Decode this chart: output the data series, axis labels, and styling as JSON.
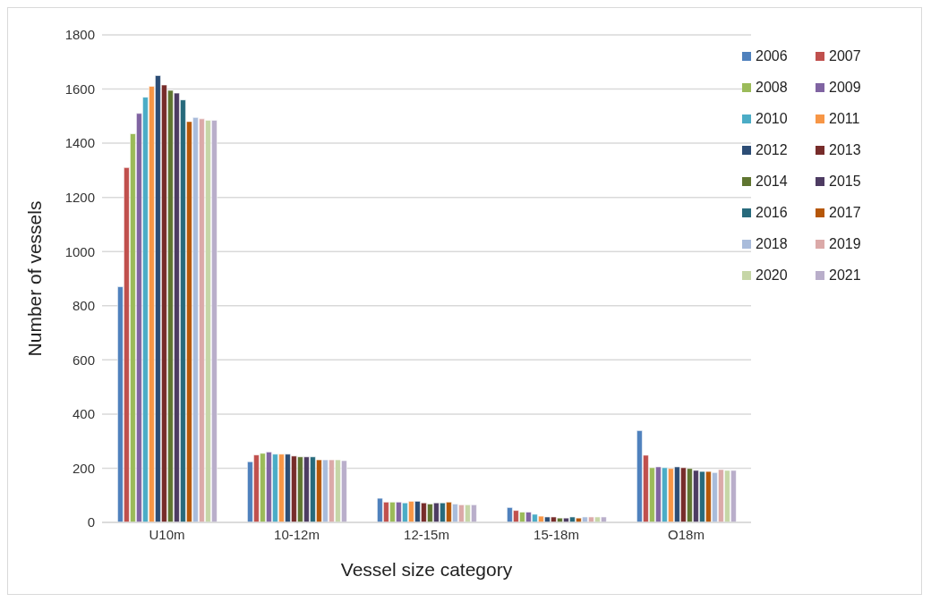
{
  "chart_data": {
    "type": "bar",
    "xlabel": "Vessel size category",
    "ylabel": "Number of vessels",
    "categories": [
      "U10m",
      "10-12m",
      "12-15m",
      "15-18m",
      "O18m"
    ],
    "series": [
      {
        "name": "2006",
        "color": "#4f81bd",
        "values": [
          870,
          224,
          89,
          55,
          339
        ]
      },
      {
        "name": "2007",
        "color": "#c0504d",
        "values": [
          1310,
          249,
          75,
          44,
          248
        ]
      },
      {
        "name": "2008",
        "color": "#9bbb59",
        "values": [
          1435,
          255,
          75,
          38,
          202
        ]
      },
      {
        "name": "2009",
        "color": "#8064a2",
        "values": [
          1510,
          260,
          75,
          38,
          205
        ]
      },
      {
        "name": "2010",
        "color": "#4bacc6",
        "values": [
          1570,
          252,
          72,
          30,
          202
        ]
      },
      {
        "name": "2011",
        "color": "#f79646",
        "values": [
          1610,
          252,
          78,
          23,
          199
        ]
      },
      {
        "name": "2012",
        "color": "#2c4d75",
        "values": [
          1650,
          252,
          78,
          20,
          205
        ]
      },
      {
        "name": "2013",
        "color": "#772c2a",
        "values": [
          1615,
          245,
          72,
          20,
          202
        ]
      },
      {
        "name": "2014",
        "color": "#5f7530",
        "values": [
          1595,
          242,
          68,
          16,
          199
        ]
      },
      {
        "name": "2015",
        "color": "#4d3b62",
        "values": [
          1585,
          242,
          72,
          16,
          192
        ]
      },
      {
        "name": "2016",
        "color": "#276a7c",
        "values": [
          1560,
          242,
          72,
          20,
          188
        ]
      },
      {
        "name": "2017",
        "color": "#b65708",
        "values": [
          1480,
          231,
          75,
          16,
          188
        ]
      },
      {
        "name": "2018",
        "color": "#a9bcdb",
        "values": [
          1495,
          231,
          68,
          20,
          184
        ]
      },
      {
        "name": "2019",
        "color": "#dba9a8",
        "values": [
          1490,
          231,
          65,
          20,
          195
        ]
      },
      {
        "name": "2020",
        "color": "#c6d6a7",
        "values": [
          1485,
          231,
          65,
          20,
          192
        ]
      },
      {
        "name": "2021",
        "color": "#b9aeca",
        "values": [
          1485,
          228,
          65,
          20,
          192
        ]
      }
    ],
    "ylim": [
      0,
      1800
    ],
    "yticks": [
      0,
      200,
      400,
      600,
      800,
      1000,
      1200,
      1400,
      1600,
      1800
    ],
    "grid": "y",
    "legend": "top right"
  }
}
